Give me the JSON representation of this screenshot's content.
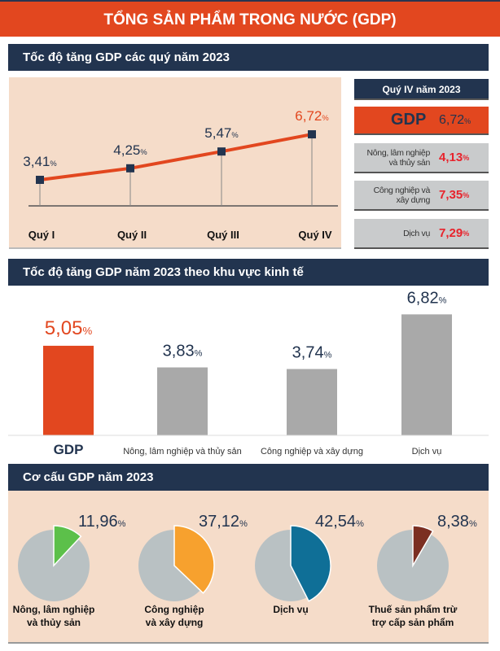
{
  "title": "TỔNG SẢN PHẨM TRONG NƯỚC (GDP)",
  "sections": {
    "quarterly": "Tốc độ tăng GDP các quý năm 2023",
    "sectors": "Tốc độ tăng GDP năm 2023 theo khu vực kinh tế",
    "structure": "Cơ cấu GDP năm 2023"
  },
  "q4_panel": {
    "header": "Quý IV năm 2023",
    "gdp_label": "GDP",
    "gdp_value": "6,72",
    "pct": "%",
    "rows": [
      {
        "label": "Nông, lâm nghiệp và thủy sản",
        "value": "4,13"
      },
      {
        "label": "Công nghiệp và xây dựng",
        "value": "7,35"
      },
      {
        "label": "Dịch vụ",
        "value": "7,29"
      }
    ]
  },
  "colors": {
    "accent": "#e2471f",
    "navy": "#22344f",
    "grey": "#b9c1c3",
    "agri": "#5cc04a",
    "industry": "#f7a12e",
    "services": "#0f6f97",
    "tax": "#7b2f22"
  },
  "chart_data": [
    {
      "type": "line",
      "title": "Tốc độ tăng GDP các quý năm 2023",
      "categories": [
        "Quý I",
        "Quý II",
        "Quý III",
        "Quý IV"
      ],
      "values": [
        3.41,
        4.25,
        5.47,
        6.72
      ],
      "labels": [
        "3,41",
        "4,25",
        "5,47",
        "6,72"
      ],
      "unit": "%",
      "grid": false
    },
    {
      "type": "bar",
      "title": "Tốc độ tăng GDP năm 2023 theo khu vực kinh tế",
      "categories": [
        "GDP",
        "Nông, lâm nghiệp và thủy sản",
        "Công nghiệp và xây dựng",
        "Dịch vụ"
      ],
      "values": [
        5.05,
        3.83,
        3.74,
        6.82
      ],
      "labels": [
        "5,05",
        "3,83",
        "3,74",
        "6,82"
      ],
      "unit": "%",
      "ylim": [
        0,
        7
      ]
    },
    {
      "type": "pie",
      "title": "Cơ cấu GDP năm 2023",
      "categories": [
        "Nông, lâm nghiệp và thủy sản",
        "Công nghiệp và xây dựng",
        "Dịch vụ",
        "Thuế sản phẩm trừ trợ cấp sản phẩm"
      ],
      "values": [
        11.96,
        37.12,
        42.54,
        8.38
      ],
      "labels": [
        "11,96",
        "37,12",
        "42,54",
        "8,38"
      ],
      "unit": "%"
    }
  ]
}
